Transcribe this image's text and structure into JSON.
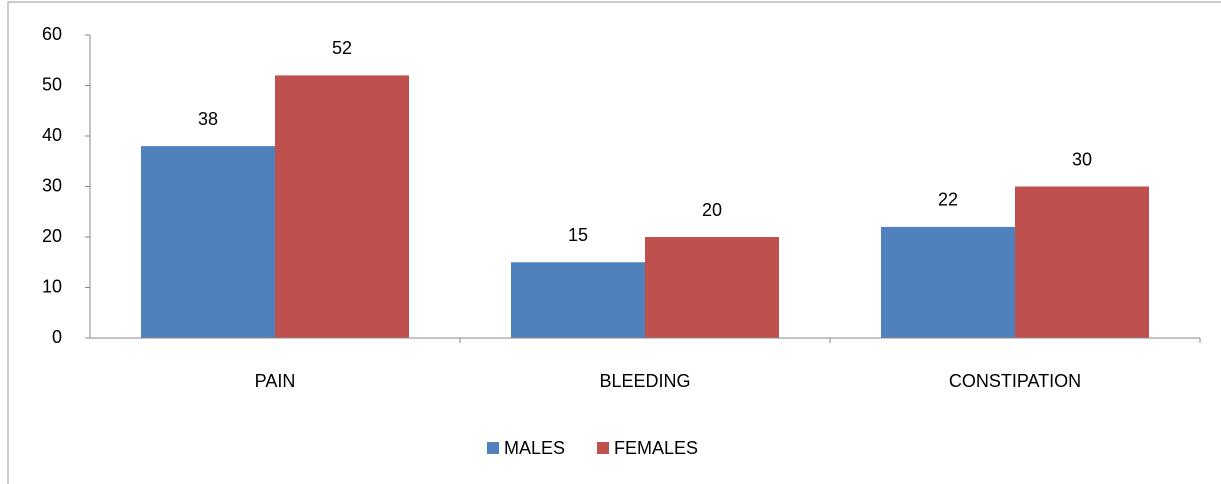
{
  "chart_data": {
    "type": "bar",
    "categories": [
      "PAIN",
      "BLEEDING",
      "CONSTIPATION"
    ],
    "series": [
      {
        "name": "MALES",
        "color": "#4f81bd",
        "values": [
          38,
          15,
          22
        ]
      },
      {
        "name": "FEMALES",
        "color": "#c0504d",
        "values": [
          52,
          20,
          30
        ]
      }
    ],
    "ylim": [
      0,
      60
    ],
    "yticks": [
      0,
      10,
      20,
      30,
      40,
      50,
      60
    ],
    "legend": "bottom"
  }
}
